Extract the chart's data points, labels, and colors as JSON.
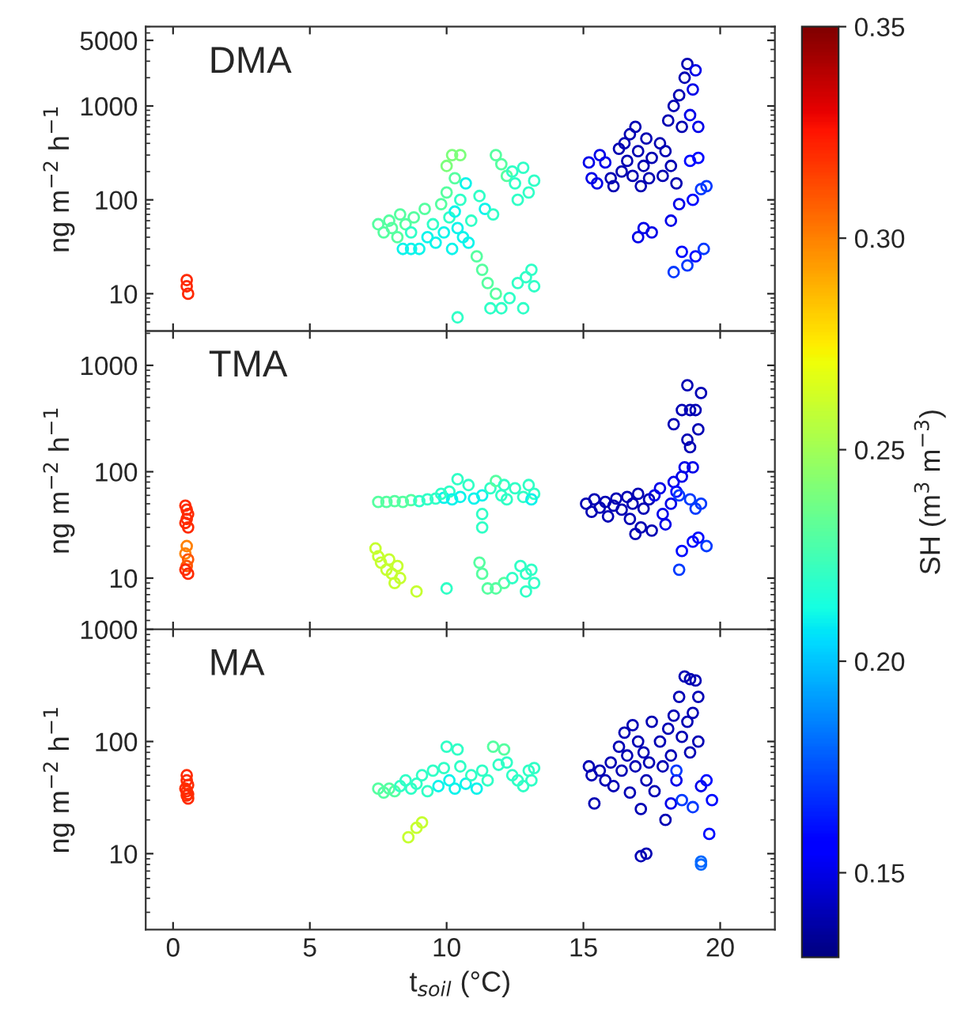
{
  "chart_data": [
    {
      "type": "scatter",
      "annotations": [
        "DMA"
      ],
      "ylabel": "ng m$^{−2}$ h$^{−1}$",
      "log": "y",
      "marker": "circle",
      "tick_labels": "y",
      "xlim": [
        -1,
        22
      ],
      "xticks": [
        0,
        5,
        10,
        15,
        20
      ],
      "ylim": [
        4,
        7000
      ],
      "yticks": [
        10,
        100,
        1000,
        5000
      ],
      "clim": [
        0.13,
        0.35
      ],
      "clabel": "SH (m$^{3}$ m$^{−3}$)",
      "cticks": [
        {
          "value": 0.15,
          "label": "0.15"
        },
        {
          "value": 0.2,
          "label": "0.20"
        },
        {
          "value": 0.25,
          "label": "0.25"
        },
        {
          "value": 0.3,
          "label": "0.30"
        },
        {
          "value": 0.35,
          "label": "0.35"
        }
      ],
      "series": [
        {
          "x": [
            0.5,
            0.5,
            0.55,
            7.5,
            7.7,
            7.9,
            8.0,
            8.2,
            8.3,
            8.5,
            8.7,
            8.8,
            8.4,
            8.7,
            9.0,
            9.2,
            9.3,
            9.5,
            9.6,
            9.8,
            9.9,
            10.0,
            10.1,
            10.2,
            10.3,
            10.4,
            10.5,
            10.6,
            10.7,
            10.8,
            10.9,
            10.2,
            10.5,
            10.0,
            10.3,
            11.2,
            11.4,
            11.1,
            11.3,
            11.5,
            11.8,
            12.0,
            11.6,
            12.3,
            12.6,
            12.9,
            13.2,
            13.1,
            12.8,
            10.4,
            11.8,
            12.0,
            12.2,
            12.5,
            12.8,
            13.0,
            13.2,
            12.6,
            11.7,
            12.4,
            15.2,
            15.3,
            15.5,
            15.6,
            15.8,
            16.0,
            16.1,
            16.3,
            16.4,
            16.5,
            16.6,
            16.7,
            16.8,
            16.9,
            17.0,
            17.1,
            17.2,
            17.3,
            17.4,
            17.5,
            17.0,
            17.2,
            17.5,
            17.8,
            17.9,
            18.0,
            18.1,
            18.2,
            18.3,
            18.4,
            18.5,
            18.6,
            18.7,
            18.8,
            18.9,
            19.0,
            19.1,
            19.2,
            18.5,
            18.2,
            18.9,
            19.2,
            19.3,
            19.5,
            18.6,
            18.8,
            19.1,
            18.3,
            19.4,
            19.0
          ],
          "values": [
            14,
            12,
            10,
            55,
            45,
            60,
            50,
            40,
            70,
            55,
            45,
            65,
            30,
            30,
            30,
            80,
            40,
            55,
            35,
            90,
            45,
            120,
            65,
            30,
            75,
            50,
            100,
            40,
            150,
            35,
            60,
            300,
            300,
            230,
            170,
            110,
            80,
            25,
            18,
            13,
            10,
            7,
            7,
            9,
            13,
            15,
            12,
            18,
            7,
            5.6,
            300,
            240,
            180,
            150,
            220,
            120,
            160,
            100,
            70,
            200,
            250,
            170,
            150,
            300,
            250,
            170,
            140,
            350,
            200,
            400,
            260,
            500,
            180,
            600,
            330,
            140,
            230,
            450,
            170,
            280,
            40,
            50,
            45,
            400,
            180,
            330,
            700,
            230,
            1000,
            150,
            1300,
            600,
            2000,
            2800,
            800,
            1500,
            2400,
            600,
            90,
            60,
            260,
            280,
            130,
            140,
            28,
            20,
            25,
            17,
            30,
            100
          ],
          "cvalues": [
            0.32,
            0.32,
            0.32,
            0.23,
            0.23,
            0.23,
            0.23,
            0.23,
            0.23,
            0.23,
            0.22,
            0.23,
            0.21,
            0.21,
            0.21,
            0.23,
            0.21,
            0.22,
            0.21,
            0.23,
            0.21,
            0.23,
            0.22,
            0.21,
            0.21,
            0.21,
            0.22,
            0.21,
            0.21,
            0.21,
            0.22,
            0.24,
            0.24,
            0.24,
            0.23,
            0.22,
            0.21,
            0.23,
            0.23,
            0.23,
            0.23,
            0.22,
            0.22,
            0.22,
            0.22,
            0.22,
            0.22,
            0.22,
            0.22,
            0.22,
            0.23,
            0.23,
            0.23,
            0.22,
            0.22,
            0.22,
            0.22,
            0.22,
            0.22,
            0.22,
            0.15,
            0.15,
            0.15,
            0.15,
            0.15,
            0.14,
            0.14,
            0.14,
            0.14,
            0.14,
            0.14,
            0.14,
            0.14,
            0.14,
            0.14,
            0.14,
            0.14,
            0.14,
            0.14,
            0.14,
            0.15,
            0.15,
            0.15,
            0.14,
            0.14,
            0.14,
            0.14,
            0.14,
            0.14,
            0.14,
            0.14,
            0.14,
            0.14,
            0.14,
            0.15,
            0.15,
            0.15,
            0.15,
            0.15,
            0.15,
            0.16,
            0.16,
            0.17,
            0.17,
            0.16,
            0.17,
            0.16,
            0.17,
            0.17,
            0.16
          ]
        }
      ]
    },
    {
      "type": "scatter",
      "annotations": [
        "TMA"
      ],
      "ylabel": "ng m$^{−2}$ h$^{−1}$",
      "log": "y",
      "marker": "circle",
      "tick_labels": "y",
      "xlim": [
        -1,
        22
      ],
      "xticks": [
        0,
        5,
        10,
        15,
        20
      ],
      "ylim": [
        3.3,
        2100
      ],
      "yticks": [
        10,
        100,
        1000
      ],
      "series": [
        {
          "x": [
            0.45,
            0.5,
            0.55,
            0.5,
            0.45,
            0.55,
            0.5,
            0.45,
            0.55,
            0.5,
            0.45,
            0.55,
            7.4,
            7.5,
            7.6,
            7.8,
            7.9,
            8.0,
            8.2,
            8.3,
            8.1,
            8.9,
            7.5,
            7.8,
            8.1,
            8.4,
            8.7,
            9.0,
            9.3,
            9.6,
            9.9,
            10.1,
            10.2,
            10.4,
            10.5,
            10.8,
            11.0,
            11.3,
            11.6,
            11.8,
            12.0,
            12.2,
            12.5,
            12.8,
            13.0,
            13.2,
            13.1,
            11.3,
            11.3,
            12.1,
            9.8,
            11.2,
            11.3,
            11.5,
            11.8,
            12.1,
            12.4,
            12.7,
            12.9,
            13.1,
            12.9,
            13.2,
            10.0,
            15.1,
            15.3,
            15.4,
            15.6,
            15.8,
            15.9,
            16.1,
            16.2,
            16.4,
            16.6,
            16.7,
            16.8,
            17.0,
            17.1,
            17.2,
            17.4,
            17.5,
            17.6,
            17.8,
            17.9,
            18.0,
            18.2,
            18.3,
            18.4,
            18.6,
            18.7,
            18.5,
            18.9,
            19.1,
            19.3,
            19.0,
            18.8,
            18.9,
            18.6,
            18.9,
            19.1,
            18.3,
            18.8,
            19.3,
            19.2,
            19.0,
            18.6,
            19.2,
            19.5,
            18.5,
            16.9
          ],
          "values": [
            48,
            44,
            40,
            36,
            33,
            30,
            20,
            17,
            15,
            13,
            12,
            11,
            19,
            16,
            14,
            12,
            15,
            11,
            13,
            10,
            9,
            7.5,
            52,
            52,
            53,
            52,
            54,
            53,
            55,
            56,
            57,
            65,
            55,
            85,
            58,
            75,
            56,
            60,
            70,
            82,
            60,
            55,
            70,
            58,
            75,
            62,
            55,
            40,
            30,
            75,
            62,
            14,
            11,
            8,
            8,
            9,
            10,
            13,
            11,
            12,
            7.5,
            9,
            8,
            50,
            42,
            55,
            46,
            52,
            38,
            48,
            56,
            44,
            58,
            36,
            50,
            62,
            30,
            45,
            55,
            28,
            60,
            70,
            40,
            32,
            50,
            80,
            65,
            90,
            110,
            60,
            55,
            45,
            50,
            110,
            200,
            170,
            380,
            380,
            380,
            280,
            650,
            550,
            250,
            22,
            18,
            24,
            20,
            12,
            26
          ],
          "colors": [
            "#ff2b00",
            "#ff2b00",
            "#ff2b00",
            "#ff2b00",
            "#ff2b00",
            "#ff2b00",
            "#ff8100",
            "#ff8100",
            "#ff5700",
            "#ff5700",
            "#ff2b00",
            "#ff2b00",
            "#c6ff30",
            "#c6ff30",
            "#c6ff30",
            "#c6ff30",
            "#c6ff30",
            "#c6ff30",
            "#c6ff30",
            "#c6ff30",
            "#c6ff30",
            "#c6ff30",
            "#56ffa1",
            "#56ffa1",
            "#56ffa1",
            "#56ffa1",
            "#56ffa1",
            "#30ffc6",
            "#30ffc6",
            "#30ffc6",
            "#0bf3eb",
            "#30ffc6",
            "#0bf3eb",
            "#30ffc6",
            "#0bf3eb",
            "#30ffc6",
            "#0bf3eb",
            "#0bf3eb",
            "#30ffc6",
            "#56ffa1",
            "#30ffc6",
            "#30ffc6",
            "#30ffc6",
            "#30ffc6",
            "#30ffc6",
            "#30ffc6",
            "#0bf3eb",
            "#30ffc6",
            "#30ffc6",
            "#30ffc6",
            "#30ffc6",
            "#56ffa1",
            "#56ffa1",
            "#56ffa1",
            "#56ffa1",
            "#56ffa1",
            "#30ffc6",
            "#30ffc6",
            "#30ffc6",
            "#30ffc6",
            "#30ffc6",
            "#30ffc6",
            "#30ffc6",
            "#0000b4",
            "#0000b4",
            "#0000b4",
            "#0000b4",
            "#0000b4",
            "#0000b4",
            "#0000b4",
            "#0000b4",
            "#0000b4",
            "#0000b4",
            "#0000b4",
            "#0000b4",
            "#0000b4",
            "#0000b4",
            "#0000b4",
            "#0000b4",
            "#0000b4",
            "#0000e9",
            "#0000e9",
            "#0000e9",
            "#0000e9",
            "#0000e9",
            "#0000e9",
            "#000bff",
            "#0000e9",
            "#0000e9",
            "#003aff",
            "#003aff",
            "#003aff",
            "#003aff",
            "#0000e9",
            "#0000b4",
            "#0000b4",
            "#0000b4",
            "#0000b4",
            "#0000b4",
            "#0000b4",
            "#0000b4",
            "#0000b4",
            "#0000b4",
            "#000bff",
            "#000bff",
            "#000bff",
            "#003aff",
            "#003aff",
            "#0000b4"
          ]
        }
      ]
    },
    {
      "type": "scatter",
      "annotations": [
        "MA"
      ],
      "ylabel": "ng m$^{−2}$ h$^{−1}$",
      "xlabel": "t$_{soil}$ (°C)",
      "log": "y",
      "marker": "circle",
      "xlim": [
        -1,
        22
      ],
      "xticks": [
        0,
        5,
        10,
        15,
        20
      ],
      "ylim": [
        2.1,
        1000
      ],
      "yticks": [
        10,
        100,
        1000
      ],
      "series": [
        {
          "x": [
            0.5,
            0.5,
            0.55,
            0.45,
            0.5,
            0.55,
            0.5,
            0.55,
            8.6,
            8.9,
            9.1,
            7.5,
            7.7,
            7.9,
            8.1,
            8.3,
            8.5,
            8.7,
            8.9,
            9.1,
            9.3,
            9.5,
            9.7,
            9.9,
            10.0,
            10.1,
            10.3,
            10.4,
            10.5,
            10.7,
            10.9,
            11.1,
            11.3,
            11.5,
            11.7,
            11.9,
            12.1,
            12.2,
            12.4,
            12.6,
            12.8,
            13.0,
            13.2,
            13.1,
            15.2,
            15.3,
            15.4,
            15.6,
            15.8,
            16.0,
            16.1,
            16.3,
            16.4,
            16.5,
            16.6,
            16.7,
            16.8,
            16.9,
            17.0,
            17.1,
            17.2,
            17.3,
            17.4,
            17.5,
            17.6,
            17.8,
            17.9,
            18.0,
            18.1,
            18.2,
            18.3,
            18.4,
            18.5,
            18.6,
            18.7,
            18.9,
            19.1,
            19.2,
            19.0,
            18.8,
            19.2,
            19.3,
            19.5,
            19.7,
            18.9,
            17.1,
            17.3,
            18.2,
            18.6,
            19.0,
            19.3,
            19.3,
            19.6,
            18.4
          ],
          "values": [
            50,
            45,
            41,
            38,
            36,
            34,
            33,
            31,
            14,
            17,
            19,
            38,
            35,
            38,
            36,
            40,
            45,
            38,
            42,
            50,
            36,
            55,
            40,
            58,
            90,
            45,
            38,
            85,
            60,
            42,
            50,
            38,
            55,
            45,
            90,
            62,
            85,
            65,
            50,
            45,
            40,
            55,
            58,
            45,
            60,
            50,
            28,
            55,
            45,
            65,
            40,
            90,
            55,
            120,
            75,
            35,
            140,
            60,
            100,
            25,
            80,
            45,
            65,
            150,
            36,
            100,
            60,
            20,
            130,
            75,
            170,
            45,
            250,
            110,
            380,
            360,
            350,
            250,
            180,
            150,
            100,
            40,
            45,
            30,
            80,
            9.5,
            10,
            28,
            30,
            26,
            8.5,
            8,
            15,
            55
          ],
          "colors": [
            "#ff2b00",
            "#ff2b00",
            "#ff2b00",
            "#ff2b00",
            "#ff2b00",
            "#ff2b00",
            "#ff2b00",
            "#ff2b00",
            "#c6ff30",
            "#c6ff30",
            "#c6ff30",
            "#56ffa1",
            "#56ffa1",
            "#56ffa1",
            "#56ffa1",
            "#30ffc6",
            "#30ffc6",
            "#30ffc6",
            "#30ffc6",
            "#30ffc6",
            "#30ffc6",
            "#30ffc6",
            "#0bf3eb",
            "#30ffc6",
            "#30ffc6",
            "#0bf3eb",
            "#0bf3eb",
            "#30ffc6",
            "#30ffc6",
            "#0bf3eb",
            "#30ffc6",
            "#0bf3eb",
            "#30ffc6",
            "#30ffc6",
            "#56ffa1",
            "#30ffc6",
            "#56ffa1",
            "#30ffc6",
            "#30ffc6",
            "#30ffc6",
            "#30ffc6",
            "#30ffc6",
            "#30ffc6",
            "#30ffc6",
            "#0000b4",
            "#0000b4",
            "#0000b4",
            "#0000b4",
            "#0000b4",
            "#0000b4",
            "#0000b4",
            "#0000b4",
            "#0000b4",
            "#0000b4",
            "#0000b4",
            "#0000b4",
            "#0000b4",
            "#0000b4",
            "#0000b4",
            "#0000b4",
            "#0000b4",
            "#0000b4",
            "#0000b4",
            "#0000b4",
            "#0000b4",
            "#0000b4",
            "#0000b4",
            "#0000b4",
            "#0000b4",
            "#0000b4",
            "#0000b4",
            "#0000e9",
            "#0000b4",
            "#0000b4",
            "#0000b4",
            "#0000b4",
            "#0000b4",
            "#0000b4",
            "#0000b4",
            "#0000b4",
            "#0000b4",
            "#0000e9",
            "#000bff",
            "#000bff",
            "#0000b4",
            "#0000b4",
            "#0000b4",
            "#0000e9",
            "#003aff",
            "#003aff",
            "#0068ff",
            "#0068ff",
            "#000bff",
            "#003aff"
          ]
        }
      ]
    }
  ]
}
